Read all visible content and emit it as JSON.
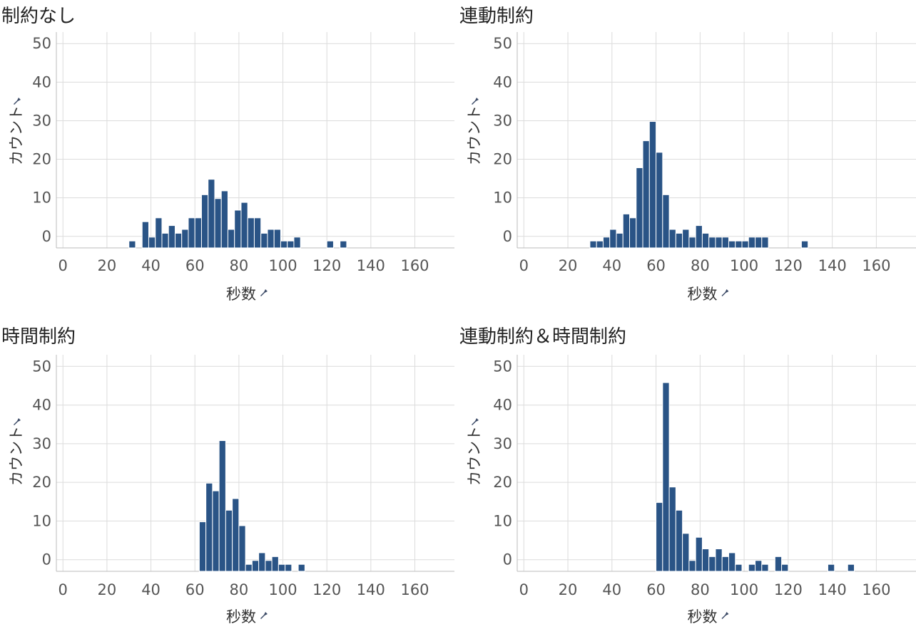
{
  "chart_data": [
    {
      "type": "bar",
      "title": "制約なし",
      "xlabel": "秒数",
      "ylabel": "カウント",
      "xlim": [
        -3,
        178
      ],
      "xticks": [
        0,
        20,
        40,
        60,
        80,
        100,
        120,
        140,
        160
      ],
      "yticks": [
        0,
        10,
        20,
        30,
        40,
        50
      ],
      "ylim": [
        -3,
        53
      ],
      "bin_width": 3,
      "bins": [
        {
          "x": 30,
          "count": 1
        },
        {
          "x": 36,
          "count": 6
        },
        {
          "x": 39,
          "count": 2
        },
        {
          "x": 42,
          "count": 7
        },
        {
          "x": 45,
          "count": 3
        },
        {
          "x": 48,
          "count": 5
        },
        {
          "x": 51,
          "count": 3
        },
        {
          "x": 54,
          "count": 4
        },
        {
          "x": 57,
          "count": 7
        },
        {
          "x": 60,
          "count": 7
        },
        {
          "x": 63,
          "count": 13
        },
        {
          "x": 66,
          "count": 17
        },
        {
          "x": 69,
          "count": 12
        },
        {
          "x": 72,
          "count": 14
        },
        {
          "x": 75,
          "count": 4
        },
        {
          "x": 78,
          "count": 9
        },
        {
          "x": 81,
          "count": 11
        },
        {
          "x": 84,
          "count": 7
        },
        {
          "x": 87,
          "count": 7
        },
        {
          "x": 90,
          "count": 3
        },
        {
          "x": 93,
          "count": 4
        },
        {
          "x": 96,
          "count": 4
        },
        {
          "x": 99,
          "count": 1
        },
        {
          "x": 102,
          "count": 1
        },
        {
          "x": 105,
          "count": 2
        },
        {
          "x": 120,
          "count": 1
        },
        {
          "x": 126,
          "count": 1
        }
      ]
    },
    {
      "type": "bar",
      "title": "連動制約",
      "xlabel": "秒数",
      "ylabel": "カウント",
      "xlim": [
        -3,
        178
      ],
      "xticks": [
        0,
        20,
        40,
        60,
        80,
        100,
        120,
        140,
        160
      ],
      "yticks": [
        0,
        10,
        20,
        30,
        40,
        50
      ],
      "ylim": [
        -3,
        53
      ],
      "bin_width": 3,
      "bins": [
        {
          "x": 30,
          "count": 1
        },
        {
          "x": 33,
          "count": 1
        },
        {
          "x": 36,
          "count": 2
        },
        {
          "x": 39,
          "count": 4
        },
        {
          "x": 42,
          "count": 3
        },
        {
          "x": 45,
          "count": 8
        },
        {
          "x": 48,
          "count": 7
        },
        {
          "x": 51,
          "count": 20
        },
        {
          "x": 54,
          "count": 27
        },
        {
          "x": 57,
          "count": 32
        },
        {
          "x": 60,
          "count": 24
        },
        {
          "x": 63,
          "count": 13
        },
        {
          "x": 66,
          "count": 4
        },
        {
          "x": 69,
          "count": 3
        },
        {
          "x": 72,
          "count": 4
        },
        {
          "x": 75,
          "count": 2
        },
        {
          "x": 78,
          "count": 5
        },
        {
          "x": 81,
          "count": 3
        },
        {
          "x": 84,
          "count": 2
        },
        {
          "x": 87,
          "count": 2
        },
        {
          "x": 90,
          "count": 2
        },
        {
          "x": 93,
          "count": 1
        },
        {
          "x": 96,
          "count": 1
        },
        {
          "x": 99,
          "count": 1
        },
        {
          "x": 102,
          "count": 2
        },
        {
          "x": 105,
          "count": 2
        },
        {
          "x": 108,
          "count": 2
        },
        {
          "x": 126,
          "count": 1
        }
      ]
    },
    {
      "type": "bar",
      "title": "時間制約",
      "xlabel": "秒数",
      "ylabel": "カウント",
      "xlim": [
        -3,
        178
      ],
      "xticks": [
        0,
        20,
        40,
        60,
        80,
        100,
        120,
        140,
        160
      ],
      "yticks": [
        0,
        10,
        20,
        30,
        40,
        50
      ],
      "ylim": [
        -3,
        53
      ],
      "bin_width": 3,
      "bins": [
        {
          "x": 62,
          "count": 12
        },
        {
          "x": 65,
          "count": 22
        },
        {
          "x": 68,
          "count": 20
        },
        {
          "x": 71,
          "count": 33
        },
        {
          "x": 74,
          "count": 15
        },
        {
          "x": 77,
          "count": 18
        },
        {
          "x": 80,
          "count": 11
        },
        {
          "x": 83,
          "count": 1
        },
        {
          "x": 86,
          "count": 2
        },
        {
          "x": 89,
          "count": 4
        },
        {
          "x": 92,
          "count": 2
        },
        {
          "x": 95,
          "count": 3
        },
        {
          "x": 98,
          "count": 1
        },
        {
          "x": 101,
          "count": 1
        },
        {
          "x": 107,
          "count": 1
        }
      ]
    },
    {
      "type": "bar",
      "title": "連動制約＆時間制約",
      "xlabel": "秒数",
      "ylabel": "カウント",
      "xlim": [
        -3,
        178
      ],
      "xticks": [
        0,
        20,
        40,
        60,
        80,
        100,
        120,
        140,
        160
      ],
      "yticks": [
        0,
        10,
        20,
        30,
        40,
        50
      ],
      "ylim": [
        -3,
        53
      ],
      "bin_width": 3,
      "bins": [
        {
          "x": 60,
          "count": 17
        },
        {
          "x": 63,
          "count": 48
        },
        {
          "x": 66,
          "count": 21
        },
        {
          "x": 69,
          "count": 15
        },
        {
          "x": 72,
          "count": 9
        },
        {
          "x": 75,
          "count": 2
        },
        {
          "x": 78,
          "count": 8
        },
        {
          "x": 81,
          "count": 5
        },
        {
          "x": 84,
          "count": 3
        },
        {
          "x": 87,
          "count": 5
        },
        {
          "x": 90,
          "count": 3
        },
        {
          "x": 93,
          "count": 4
        },
        {
          "x": 96,
          "count": 1
        },
        {
          "x": 102,
          "count": 1
        },
        {
          "x": 105,
          "count": 2
        },
        {
          "x": 108,
          "count": 1
        },
        {
          "x": 114,
          "count": 3
        },
        {
          "x": 117,
          "count": 1
        },
        {
          "x": 138,
          "count": 1
        },
        {
          "x": 147,
          "count": 1
        }
      ]
    }
  ],
  "colors": {
    "bar": "#2a5486",
    "grid": "#dcdcdc",
    "axis": "#bbbbbb",
    "pin": "#3b4a66"
  },
  "icons": {
    "axis_pin": "pin-icon"
  }
}
